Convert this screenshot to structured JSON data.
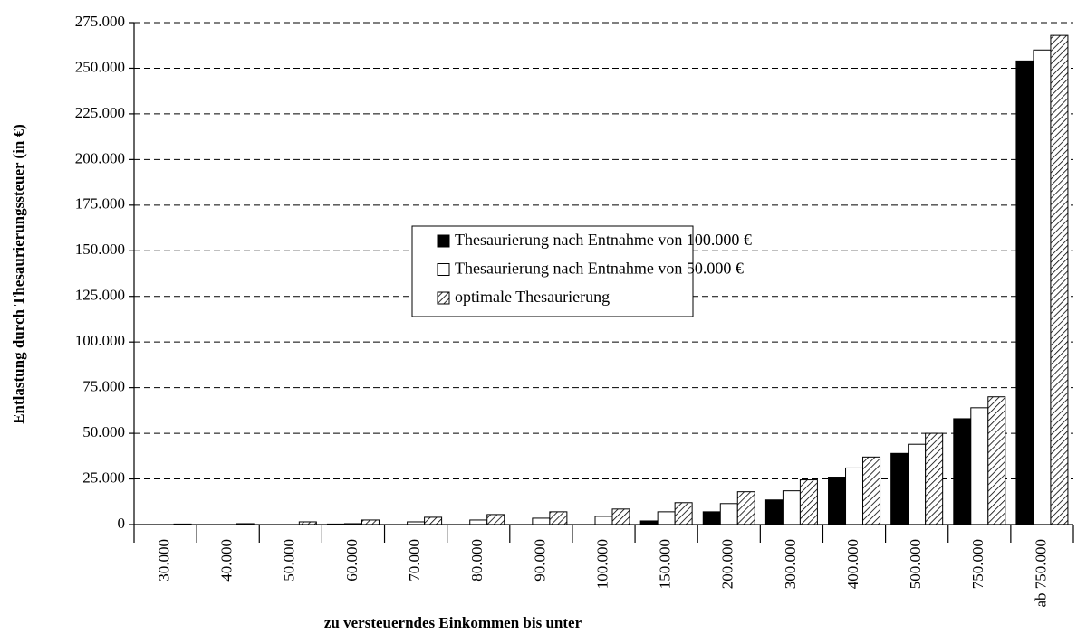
{
  "chart_data": {
    "type": "bar",
    "y_label": "Entlastung durch Thesaurierungssteuer (in €)",
    "x_label": "zu versteuerndes Einkommen bis unter",
    "categories": [
      "30.000",
      "40.000",
      "50.000",
      "60.000",
      "70.000",
      "80.000",
      "90.000",
      "100.000",
      "150.000",
      "200.000",
      "300.000",
      "400.000",
      "500.000",
      "750.000",
      "ab 750.000"
    ],
    "series": [
      {
        "name": "Thesaurierung nach Entnahme von 100.000 €",
        "color": "#000000",
        "hatch": false,
        "values": [
          0,
          0,
          0,
          300,
          0,
          0,
          0,
          0,
          2000,
          7000,
          13500,
          26000,
          39000,
          58000,
          254000
        ]
      },
      {
        "name": "Thesaurierung nach Entnahme von 50.000 €",
        "color": "#ffffff",
        "hatch": false,
        "values": [
          0,
          0,
          0,
          500,
          1500,
          2500,
          3500,
          4500,
          7000,
          11500,
          18500,
          31000,
          44000,
          64000,
          260000
        ]
      },
      {
        "name": "optimale Thesaurierung",
        "color": "#000000",
        "hatch": true,
        "values": [
          300,
          500,
          1500,
          2500,
          4000,
          5500,
          7000,
          8500,
          12000,
          18000,
          24500,
          37000,
          50000,
          70000,
          268000
        ]
      }
    ],
    "ylim": [
      0,
      275000
    ],
    "yticks": [
      0,
      {
        "value": 25000,
        "label": "25.000"
      },
      {
        "value": 50000,
        "label": "50.000"
      },
      {
        "value": 75000,
        "label": "75.000"
      },
      {
        "value": 100000,
        "label": "100.000"
      },
      {
        "value": 125000,
        "label": "125.000"
      },
      {
        "value": 150000,
        "label": "150.000"
      },
      {
        "value": 175000,
        "label": "175.000"
      },
      {
        "value": 200000,
        "label": "200.000"
      },
      {
        "value": 225000,
        "label": "225.000"
      },
      {
        "value": 250000,
        "label": "250.000"
      },
      {
        "value": 275000,
        "label": "275.000"
      }
    ],
    "grid": true,
    "legend": "center"
  }
}
